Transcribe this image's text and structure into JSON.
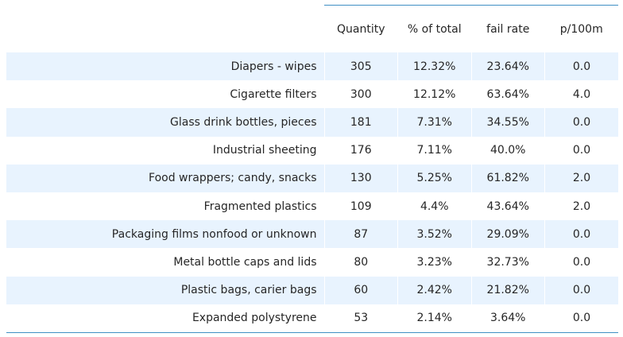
{
  "table": {
    "headers": [
      "",
      "Quantity",
      "% of total",
      "fail rate",
      "p/100m"
    ],
    "rows": [
      {
        "label": "Diapers - wipes",
        "quantity": "305",
        "pct_total": "12.32%",
        "fail_rate": "23.64%",
        "p100m": "0.0"
      },
      {
        "label": "Cigarette filters",
        "quantity": "300",
        "pct_total": "12.12%",
        "fail_rate": "63.64%",
        "p100m": "4.0"
      },
      {
        "label": "Glass drink bottles, pieces",
        "quantity": "181",
        "pct_total": "7.31%",
        "fail_rate": "34.55%",
        "p100m": "0.0"
      },
      {
        "label": "Industrial sheeting",
        "quantity": "176",
        "pct_total": "7.11%",
        "fail_rate": "40.0%",
        "p100m": "0.0"
      },
      {
        "label": "Food wrappers; candy, snacks",
        "quantity": "130",
        "pct_total": "5.25%",
        "fail_rate": "61.82%",
        "p100m": "2.0"
      },
      {
        "label": "Fragmented plastics",
        "quantity": "109",
        "pct_total": "4.4%",
        "fail_rate": "43.64%",
        "p100m": "2.0"
      },
      {
        "label": "Packaging films nonfood or unknown",
        "quantity": "87",
        "pct_total": "3.52%",
        "fail_rate": "29.09%",
        "p100m": "0.0"
      },
      {
        "label": "Metal bottle caps and lids",
        "quantity": "80",
        "pct_total": "3.23%",
        "fail_rate": "32.73%",
        "p100m": "0.0"
      },
      {
        "label": "Plastic bags, carier bags",
        "quantity": "60",
        "pct_total": "2.42%",
        "fail_rate": "21.82%",
        "p100m": "0.0"
      },
      {
        "label": "Expanded polystyrene",
        "quantity": "53",
        "pct_total": "2.14%",
        "fail_rate": "3.64%",
        "p100m": "0.0"
      }
    ]
  },
  "colors": {
    "row_shade": "#e8f3fe",
    "rule": "#3f8fc4",
    "text": "#262626"
  }
}
